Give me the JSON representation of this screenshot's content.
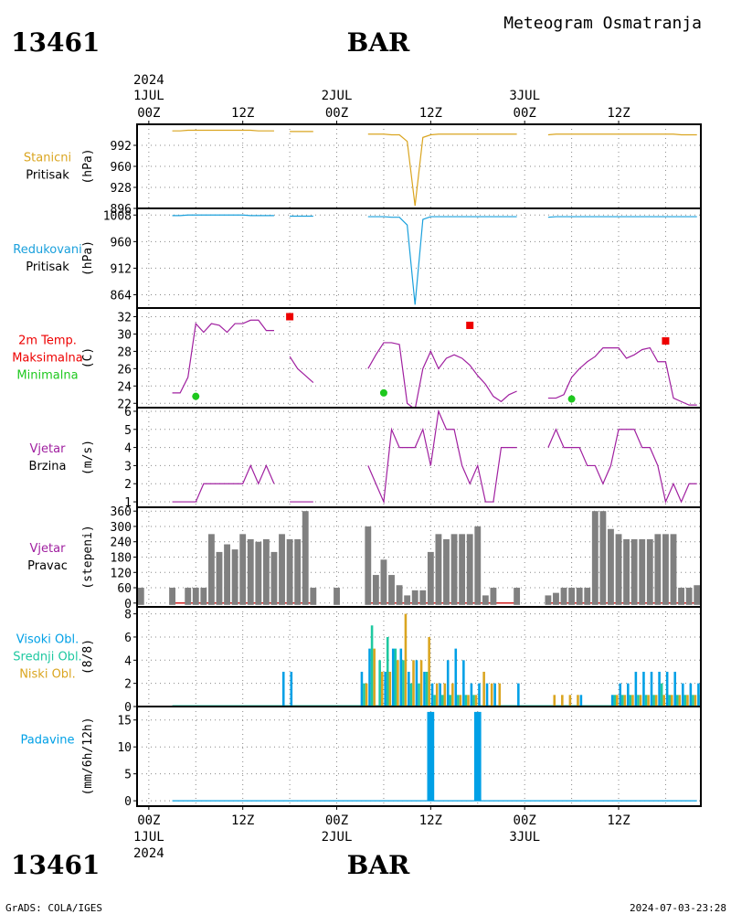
{
  "header": {
    "station_id": "13461",
    "station_name": "BAR",
    "meteogram_title": "Meteogram Osmatranja"
  },
  "footer": {
    "credit": "GrADS: COLA/IGES",
    "timestamp": "2024-07-03-23:28"
  },
  "colors": {
    "station_pressure": "#daa520",
    "reduced_pressure": "#1aa0dc",
    "temperature": "#a020a0",
    "tmax": "#ee0000",
    "tmin": "#1ec81e",
    "wind": "#a020a0",
    "wind_dir_bar": "#808080",
    "high_cloud": "#00a0e6",
    "mid_cloud": "#1ec8a0",
    "low_cloud": "#daa520",
    "precip": "#00a0e6"
  },
  "time_axis": {
    "top_labels": [
      {
        "line1": "2024",
        "line2": "1JUL",
        "line3": "00Z",
        "hour": 0
      },
      {
        "line1": "",
        "line2": "",
        "line3": "12Z",
        "hour": 12
      },
      {
        "line1": "",
        "line2": "2JUL",
        "line3": "00Z",
        "hour": 24
      },
      {
        "line1": "",
        "line2": "",
        "line3": "12Z",
        "hour": 36
      },
      {
        "line1": "",
        "line2": "3JUL",
        "line3": "00Z",
        "hour": 48
      },
      {
        "line1": "",
        "line2": "",
        "line3": "12Z",
        "hour": 60
      }
    ],
    "bottom_labels": [
      {
        "line1": "00Z",
        "line2": "1JUL",
        "line3": "2024",
        "hour": 0
      },
      {
        "line1": "12Z",
        "line2": "",
        "line3": "",
        "hour": 12
      },
      {
        "line1": "00Z",
        "line2": "2JUL",
        "line3": "",
        "hour": 24
      },
      {
        "line1": "12Z",
        "line2": "",
        "line3": "",
        "hour": 36
      },
      {
        "line1": "00Z",
        "line2": "3JUL",
        "line3": "",
        "hour": 48
      },
      {
        "line1": "12Z",
        "line2": "",
        "line3": "",
        "hour": 60
      }
    ],
    "hour_range": [
      -1.5,
      70.5
    ]
  },
  "chart_data": [
    {
      "type": "line",
      "panel": "station_pressure",
      "label_lines": [
        "Stanicni",
        "Pritisak"
      ],
      "ylabel": "(hPa)",
      "yticks": [
        896,
        928,
        960,
        992
      ],
      "ylim": [
        896,
        1024
      ],
      "series": [
        {
          "x": [
            3,
            4,
            5,
            6,
            7,
            8,
            9,
            10,
            11,
            12,
            13,
            14,
            15,
            16
          ],
          "y": [
            1014,
            1014,
            1015,
            1015,
            1015,
            1015,
            1015,
            1015,
            1015,
            1015,
            1015,
            1014,
            1014,
            1014
          ]
        },
        {
          "x": [
            18,
            19,
            20,
            21
          ],
          "y": [
            1013,
            1013,
            1013,
            1013
          ]
        },
        {
          "x": [
            28,
            29,
            30,
            31,
            32,
            33,
            34,
            35,
            36,
            37,
            38,
            39,
            40,
            41,
            42,
            43,
            44,
            45,
            46,
            47
          ],
          "y": [
            1009,
            1009,
            1009,
            1008,
            1008,
            998,
            900,
            1004,
            1008,
            1009,
            1009,
            1009,
            1009,
            1009,
            1009,
            1009,
            1009,
            1009,
            1009,
            1009
          ]
        },
        {
          "x": [
            51,
            52,
            53,
            54,
            55,
            56,
            57,
            58,
            59,
            60,
            61,
            62,
            63,
            64,
            65,
            66,
            67,
            68,
            69,
            70
          ],
          "y": [
            1008,
            1009,
            1009,
            1009,
            1009,
            1009,
            1009,
            1009,
            1009,
            1009,
            1009,
            1009,
            1009,
            1009,
            1009,
            1009,
            1009,
            1008,
            1008,
            1008
          ]
        }
      ]
    },
    {
      "type": "line",
      "panel": "reduced_pressure",
      "label_lines": [
        "Redukovani",
        "Pritisak"
      ],
      "ylabel": "(hPa)",
      "yticks": [
        864,
        912,
        960,
        1008
      ],
      "ylim": [
        840,
        1020
      ],
      "series": [
        {
          "x": [
            3,
            4,
            5,
            6,
            7,
            8,
            9,
            10,
            11,
            12,
            13,
            14,
            15,
            16
          ],
          "y": [
            1007,
            1007,
            1008,
            1008,
            1008,
            1008,
            1008,
            1008,
            1008,
            1008,
            1007,
            1007,
            1007,
            1007
          ]
        },
        {
          "x": [
            18,
            19,
            20,
            21
          ],
          "y": [
            1006,
            1006,
            1006,
            1006
          ]
        },
        {
          "x": [
            28,
            29,
            30,
            31,
            32,
            33,
            34,
            35,
            36,
            37,
            38,
            39,
            40,
            41,
            42,
            43,
            44,
            45,
            46,
            47
          ],
          "y": [
            1005,
            1005,
            1005,
            1004,
            1004,
            990,
            846,
            1000,
            1005,
            1005,
            1005,
            1005,
            1005,
            1005,
            1005,
            1005,
            1005,
            1005,
            1005,
            1005
          ]
        },
        {
          "x": [
            51,
            52,
            53,
            54,
            55,
            56,
            57,
            58,
            59,
            60,
            61,
            62,
            63,
            64,
            65,
            66,
            67,
            68,
            69,
            70
          ],
          "y": [
            1004,
            1005,
            1005,
            1005,
            1005,
            1005,
            1005,
            1005,
            1005,
            1005,
            1005,
            1005,
            1005,
            1005,
            1005,
            1005,
            1005,
            1005,
            1005,
            1005
          ]
        }
      ]
    },
    {
      "type": "line",
      "panel": "temperature",
      "label_lines": [
        "2m Temp.",
        "Maksimalna",
        "Minimalna"
      ],
      "ylabel": "(C)",
      "yticks": [
        22,
        24,
        26,
        28,
        30,
        32
      ],
      "ylim": [
        21.5,
        33
      ],
      "series": [
        {
          "x": [
            3,
            4,
            5,
            6,
            7,
            8,
            9,
            10,
            11,
            12,
            13,
            14,
            15,
            16
          ],
          "y": [
            23.2,
            23.2,
            25,
            31.2,
            30.2,
            31.2,
            31,
            30.2,
            31.2,
            31.2,
            31.6,
            31.6,
            30.4,
            30.4
          ]
        },
        {
          "x": [
            18,
            19,
            20,
            21
          ],
          "y": [
            27.4,
            26,
            25.2,
            24.4
          ]
        },
        {
          "x": [
            28,
            29,
            30,
            31,
            32,
            33,
            34,
            35,
            36,
            37,
            38,
            39,
            40,
            41,
            42,
            43,
            44,
            45,
            46,
            47
          ],
          "y": [
            26,
            27.6,
            29,
            29,
            28.8,
            22,
            21.3,
            26,
            28,
            26,
            27.2,
            27.6,
            27.2,
            26.4,
            25.2,
            24.2,
            22.8,
            22.2,
            23,
            23.4
          ]
        },
        {
          "x": [
            51,
            52,
            53,
            54,
            55,
            56,
            57,
            58,
            59,
            60,
            61,
            62,
            63,
            64,
            65,
            66,
            67,
            68,
            69,
            70
          ],
          "y": [
            22.6,
            22.6,
            23,
            25,
            26,
            26.8,
            27.4,
            28.4,
            28.4,
            28.4,
            27.2,
            27.6,
            28.2,
            28.4,
            26.8,
            26.8,
            22.6,
            22.2,
            21.8,
            21.8
          ]
        }
      ],
      "tmax": [
        {
          "x": 18,
          "y": 32
        },
        {
          "x": 41,
          "y": 31
        },
        {
          "x": 66,
          "y": 29.2
        }
      ],
      "tmin": [
        {
          "x": 6,
          "y": 22.8
        },
        {
          "x": 30,
          "y": 23.2
        },
        {
          "x": 54,
          "y": 22.5
        }
      ]
    },
    {
      "type": "line",
      "panel": "wind_speed",
      "label_lines": [
        "Vjetar",
        "Brzina"
      ],
      "ylabel": "(m/s)",
      "yticks": [
        1,
        2,
        3,
        4,
        5,
        6
      ],
      "ylim": [
        0.7,
        6.2
      ],
      "series": [
        {
          "x": [
            3,
            4,
            5,
            6,
            7,
            8,
            9,
            10,
            11,
            12,
            13,
            14,
            15,
            16
          ],
          "y": [
            1,
            1,
            1,
            1,
            2,
            2,
            2,
            2,
            2,
            2,
            3,
            2,
            3,
            2
          ]
        },
        {
          "x": [
            18,
            19,
            20,
            21
          ],
          "y": [
            1,
            1,
            1,
            1
          ]
        },
        {
          "x": [
            28,
            29,
            30,
            31,
            32,
            33,
            34,
            35,
            36,
            37,
            38,
            39,
            40,
            41,
            42,
            43,
            44,
            45,
            46,
            47
          ],
          "y": [
            3,
            2,
            1,
            5,
            4,
            4,
            4,
            5,
            3,
            6,
            5,
            5,
            3,
            2,
            3,
            1,
            1,
            4,
            4,
            4
          ]
        },
        {
          "x": [
            51,
            52,
            53,
            54,
            55,
            56,
            57,
            58,
            59,
            60,
            61,
            62,
            63,
            64,
            65,
            66,
            67,
            68,
            69,
            70
          ],
          "y": [
            4,
            5,
            4,
            4,
            4,
            3,
            3,
            2,
            3,
            5,
            5,
            5,
            4,
            4,
            3,
            1,
            2,
            1,
            2,
            2
          ]
        }
      ]
    },
    {
      "type": "bar",
      "panel": "wind_direction",
      "label_lines": [
        "Vjetar",
        "Pravac"
      ],
      "ylabel": "(stepeni)",
      "yticks": [
        0,
        60,
        120,
        180,
        240,
        300,
        360
      ],
      "ylim": [
        -15,
        375
      ],
      "x": [
        -1,
        3,
        5,
        6,
        7,
        8,
        9,
        10,
        11,
        12,
        13,
        14,
        15,
        16,
        17,
        18,
        19,
        20,
        21,
        24,
        28,
        29,
        30,
        31,
        32,
        33,
        34,
        35,
        36,
        37,
        38,
        39,
        40,
        41,
        42,
        43,
        44,
        47,
        51,
        52,
        53,
        54,
        55,
        56,
        57,
        58,
        59,
        60,
        61,
        62,
        63,
        64,
        65,
        66,
        67,
        68,
        69,
        70
      ],
      "values": [
        60,
        60,
        60,
        60,
        60,
        270,
        200,
        230,
        210,
        270,
        250,
        240,
        250,
        200,
        270,
        250,
        250,
        360,
        60,
        60,
        300,
        110,
        170,
        110,
        70,
        30,
        50,
        50,
        200,
        270,
        250,
        270,
        270,
        270,
        300,
        30,
        60,
        60,
        30,
        40,
        60,
        60,
        60,
        60,
        360,
        360,
        290,
        270,
        250,
        250,
        250,
        250,
        270,
        270,
        270,
        60,
        60,
        70
      ]
    },
    {
      "type": "bar",
      "panel": "clouds",
      "label_lines": [
        "Visoki Obl.",
        "Srednji Obl.",
        "Niski Obl."
      ],
      "ylabel": "(8/8)",
      "yticks": [
        0,
        2,
        4,
        6,
        8
      ],
      "ylim": [
        0,
        8.6
      ],
      "x": [
        17.5,
        18.5,
        27.5,
        28.5,
        29.5,
        30.5,
        31.5,
        32.5,
        33.5,
        34.5,
        35.5,
        36.5,
        37.5,
        38.5,
        39.5,
        40.5,
        41.5,
        42.5,
        43.5,
        44.5,
        47.5,
        51.5,
        52.5,
        53.5,
        54.5,
        55.5,
        59.5,
        60.5,
        61.5,
        62.5,
        63.5,
        64.5,
        65.5,
        66.5,
        67.5,
        68.5,
        69.5,
        70.5
      ],
      "series": [
        {
          "name": "Visoki Obl.",
          "values": [
            3,
            3,
            3,
            5,
            0,
            3,
            5,
            5,
            3,
            4,
            3,
            2,
            2,
            4,
            5,
            4,
            2,
            2,
            2,
            2,
            2,
            0,
            0,
            0,
            0,
            1,
            1,
            2,
            2,
            3,
            3,
            3,
            3,
            3,
            3,
            2,
            2,
            2
          ]
        },
        {
          "name": "Srednji Obl.",
          "values": [
            0,
            0,
            2,
            7,
            4,
            6,
            5,
            4,
            2,
            2,
            3,
            1,
            1,
            1,
            1,
            1,
            1,
            0,
            0,
            0,
            0,
            0,
            0,
            0,
            0,
            0,
            1,
            1,
            1,
            1,
            1,
            1,
            2,
            1,
            1,
            1,
            1,
            1
          ]
        },
        {
          "name": "Niski Obl.",
          "values": [
            0,
            0,
            2,
            5,
            3,
            3,
            4,
            8,
            4,
            4,
            6,
            2,
            2,
            2,
            1,
            1,
            1,
            3,
            2,
            2,
            0,
            1,
            1,
            1,
            1,
            0,
            1,
            1,
            1,
            1,
            1,
            1,
            1,
            1,
            1,
            1,
            1,
            1
          ]
        }
      ]
    },
    {
      "type": "bar",
      "panel": "precipitation",
      "label_lines": [
        "Padavine"
      ],
      "ylabel": "(mm/6h/12h)",
      "yticks": [
        0,
        5,
        10,
        15
      ],
      "ylim": [
        -1,
        17.5
      ],
      "x": [
        36,
        42
      ],
      "values": [
        16.5,
        16.5
      ]
    }
  ]
}
